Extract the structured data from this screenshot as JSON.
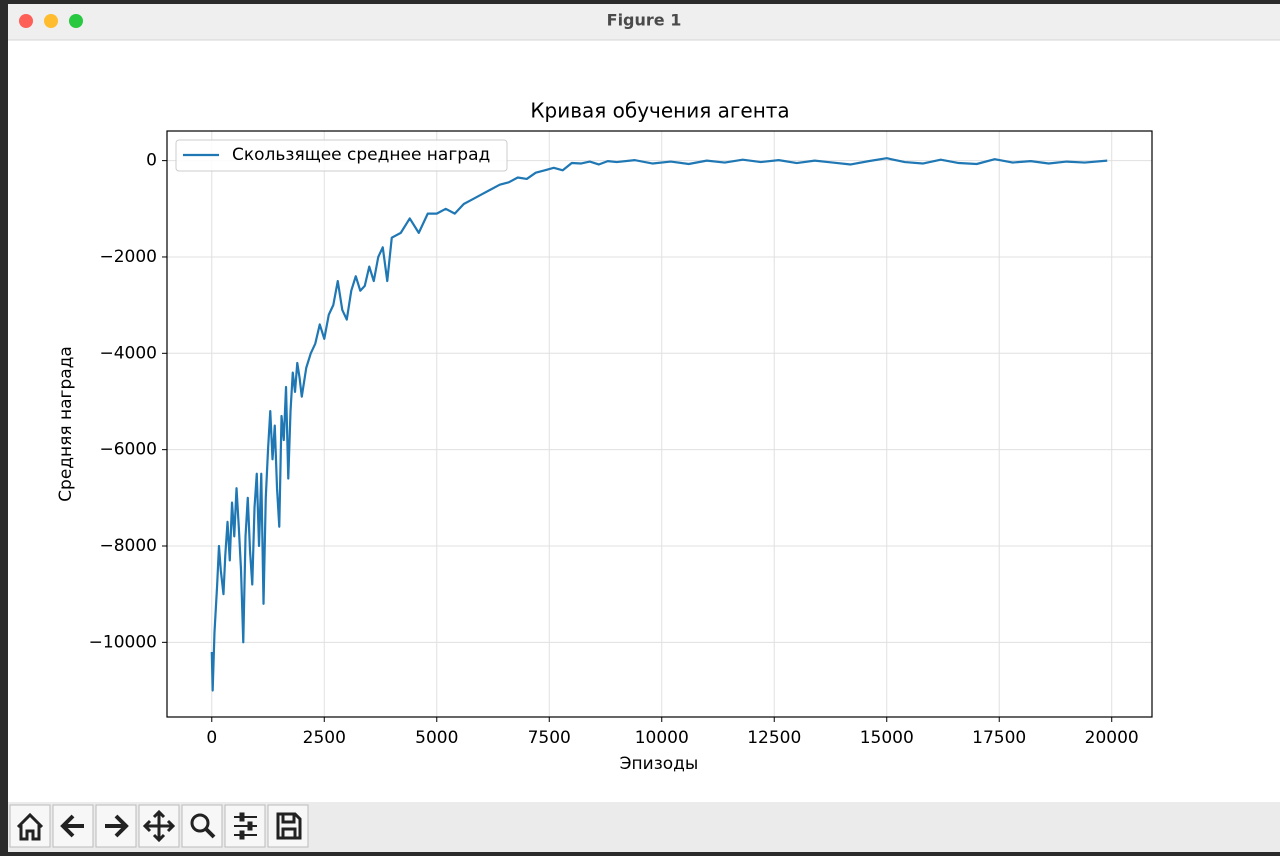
{
  "window": {
    "title": "Figure 1"
  },
  "chart_data": {
    "type": "line",
    "title": "Кривая обучения агента",
    "x_label": "Эпизоды",
    "y_label": "Средняя награда",
    "x": [
      0,
      20,
      60,
      120,
      160,
      200,
      260,
      300,
      350,
      400,
      450,
      500,
      550,
      600,
      650,
      700,
      750,
      800,
      850,
      900,
      950,
      1000,
      1050,
      1100,
      1150,
      1200,
      1250,
      1300,
      1350,
      1400,
      1450,
      1500,
      1550,
      1600,
      1650,
      1700,
      1750,
      1800,
      1850,
      1900,
      1950,
      2000,
      2100,
      2200,
      2300,
      2400,
      2500,
      2600,
      2700,
      2800,
      2900,
      3000,
      3100,
      3200,
      3300,
      3400,
      3500,
      3600,
      3700,
      3800,
      3900,
      4000,
      4200,
      4400,
      4600,
      4800,
      5000,
      5200,
      5400,
      5600,
      5800,
      6000,
      6200,
      6400,
      6600,
      6800,
      7000,
      7200,
      7400,
      7600,
      7800,
      8000,
      8200,
      8400,
      8600,
      8800,
      9000,
      9400,
      9800,
      10200,
      10600,
      11000,
      11400,
      11800,
      12200,
      12600,
      13000,
      13400,
      13800,
      14200,
      14600,
      15000,
      15400,
      15800,
      16200,
      16600,
      17000,
      17400,
      17800,
      18200,
      18600,
      19000,
      19400,
      19900
    ],
    "series": [
      {
        "name": "Скользящее среднее наград",
        "color": "#1f77b4",
        "values": [
          -10200,
          -11000,
          -9800,
          -8800,
          -8000,
          -8500,
          -9000,
          -8200,
          -7500,
          -8300,
          -7100,
          -7800,
          -6800,
          -7600,
          -8500,
          -10000,
          -7800,
          -7000,
          -8100,
          -8800,
          -7200,
          -6500,
          -8000,
          -6500,
          -9200,
          -7000,
          -6000,
          -5200,
          -6200,
          -5500,
          -6800,
          -7600,
          -5300,
          -5800,
          -4700,
          -6600,
          -5200,
          -4400,
          -4800,
          -4200,
          -4500,
          -4900,
          -4300,
          -4000,
          -3800,
          -3400,
          -3700,
          -3200,
          -3000,
          -2500,
          -3100,
          -3300,
          -2700,
          -2400,
          -2700,
          -2600,
          -2200,
          -2500,
          -2000,
          -1800,
          -2500,
          -1600,
          -1500,
          -1200,
          -1500,
          -1100,
          -1100,
          -1000,
          -1100,
          -900,
          -800,
          -700,
          -600,
          -500,
          -450,
          -350,
          -380,
          -250,
          -200,
          -150,
          -200,
          -50,
          -60,
          -20,
          -80,
          -10,
          -30,
          10,
          -60,
          -20,
          -70,
          0,
          -40,
          20,
          -30,
          10,
          -50,
          0,
          -40,
          -80,
          -10,
          50,
          -30,
          -60,
          20,
          -50,
          -70,
          30,
          -40,
          -10,
          -60,
          -20,
          -40,
          0
        ]
      }
    ],
    "xlim": [
      -995,
      20895
    ],
    "ylim": [
      -11550,
      615
    ],
    "xticks": [
      0,
      2500,
      5000,
      7500,
      10000,
      12500,
      15000,
      17500,
      20000
    ],
    "yticks": [
      {
        "value": -10000,
        "label": "−10000"
      },
      {
        "value": -8000,
        "label": "−8000"
      },
      {
        "value": -6000,
        "label": "−6000"
      },
      {
        "value": -4000,
        "label": "−4000"
      },
      {
        "value": -2000,
        "label": "−2000"
      },
      0
    ],
    "grid": true,
    "legend": "upper-left"
  }
}
